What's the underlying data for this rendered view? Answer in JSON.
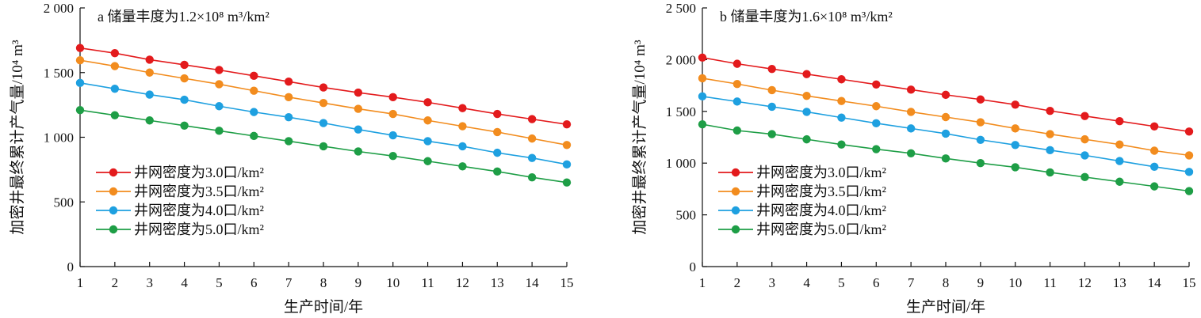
{
  "chart_data": [
    {
      "type": "line",
      "title": "a 储量丰度为1.2×10⁸ m³/km²",
      "xlabel": "生产时间/年",
      "ylabel": "加密井最终累计产气量/10⁴ m³",
      "xlim": [
        1,
        15
      ],
      "ylim": [
        0,
        2000
      ],
      "x": [
        1,
        2,
        3,
        4,
        5,
        6,
        7,
        8,
        9,
        10,
        11,
        12,
        13,
        14,
        15
      ],
      "y_ticks": [
        0,
        500,
        1000,
        1500,
        2000
      ],
      "y_tick_labels": [
        "0",
        "500",
        "1 000",
        "1 500",
        "2 000"
      ],
      "x_ticks": [
        1,
        2,
        3,
        4,
        5,
        6,
        7,
        8,
        9,
        10,
        11,
        12,
        13,
        14,
        15
      ],
      "x_tick_labels": [
        "1",
        "2",
        "3",
        "4",
        "5",
        "6",
        "7",
        "8",
        "9",
        "10",
        "11",
        "12",
        "13",
        "14",
        "15"
      ],
      "grid": false,
      "legend_position": "lower-left",
      "series": [
        {
          "name": "井网密度为3.0口/km²",
          "color": "#e31a1c",
          "values": [
            1690,
            1650,
            1600,
            1560,
            1520,
            1475,
            1430,
            1385,
            1345,
            1310,
            1270,
            1225,
            1180,
            1140,
            1100
          ]
        },
        {
          "name": "井网密度为3.5口/km²",
          "color": "#f28c1e",
          "values": [
            1595,
            1550,
            1500,
            1455,
            1410,
            1360,
            1310,
            1265,
            1220,
            1180,
            1130,
            1085,
            1040,
            990,
            940
          ]
        },
        {
          "name": "井网密度为4.0口/km²",
          "color": "#1ea0e0",
          "values": [
            1420,
            1375,
            1330,
            1290,
            1240,
            1195,
            1155,
            1110,
            1060,
            1015,
            970,
            930,
            880,
            840,
            790
          ]
        },
        {
          "name": "井网密度为5.0口/km²",
          "color": "#1e9e46",
          "values": [
            1210,
            1170,
            1130,
            1090,
            1050,
            1010,
            970,
            930,
            890,
            855,
            815,
            775,
            735,
            690,
            650
          ]
        }
      ]
    },
    {
      "type": "line",
      "title": "b 储量丰度为1.6×10⁸ m³/km²",
      "xlabel": "生产时间/年",
      "ylabel": "加密井最终累计产气量/10⁴ m³",
      "xlim": [
        1,
        15
      ],
      "ylim": [
        0,
        2500
      ],
      "x": [
        1,
        2,
        3,
        4,
        5,
        6,
        7,
        8,
        9,
        10,
        11,
        12,
        13,
        14,
        15
      ],
      "y_ticks": [
        0,
        500,
        1000,
        1500,
        2000,
        2500
      ],
      "y_tick_labels": [
        "0",
        "500",
        "1 000",
        "1 500",
        "2 000",
        "2 500"
      ],
      "x_ticks": [
        1,
        2,
        3,
        4,
        5,
        6,
        7,
        8,
        9,
        10,
        11,
        12,
        13,
        14,
        15
      ],
      "x_tick_labels": [
        "1",
        "2",
        "3",
        "4",
        "5",
        "6",
        "7",
        "8",
        "9",
        "10",
        "11",
        "12",
        "13",
        "14",
        "15"
      ],
      "grid": false,
      "legend_position": "lower-left",
      "series": [
        {
          "name": "井网密度为3.0口/km²",
          "color": "#e31a1c",
          "values": [
            2020,
            1960,
            1910,
            1860,
            1810,
            1760,
            1710,
            1660,
            1615,
            1565,
            1505,
            1455,
            1405,
            1355,
            1305
          ]
        },
        {
          "name": "井网密度为3.5口/km²",
          "color": "#f28c1e",
          "values": [
            1820,
            1765,
            1705,
            1650,
            1600,
            1550,
            1495,
            1445,
            1395,
            1335,
            1280,
            1230,
            1180,
            1120,
            1075
          ]
        },
        {
          "name": "井网密度为4.0口/km²",
          "color": "#1ea0e0",
          "values": [
            1645,
            1595,
            1545,
            1495,
            1440,
            1385,
            1335,
            1285,
            1225,
            1175,
            1125,
            1075,
            1020,
            965,
            915
          ]
        },
        {
          "name": "井网密度为5.0口/km²",
          "color": "#1e9e46",
          "values": [
            1375,
            1315,
            1280,
            1230,
            1180,
            1135,
            1095,
            1045,
            1000,
            960,
            910,
            865,
            820,
            775,
            730
          ]
        }
      ]
    }
  ]
}
